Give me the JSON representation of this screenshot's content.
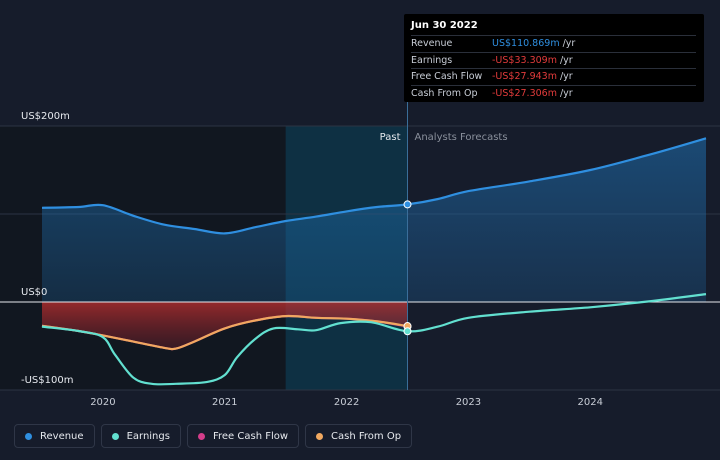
{
  "chart_data": {
    "type": "line",
    "y_tick_labels": [
      "US$200m",
      "US$0",
      "-US$100m"
    ],
    "x_tick_labels": [
      "2020",
      "2021",
      "2022",
      "2023",
      "2024"
    ],
    "region_labels": {
      "past": "Past",
      "forecast": "Analysts Forecasts"
    },
    "series": [
      {
        "name": "Revenue",
        "color": "#2f8fe0",
        "points": [
          [
            2019.5,
            107
          ],
          [
            2019.8,
            108
          ],
          [
            2020.0,
            110
          ],
          [
            2020.25,
            98
          ],
          [
            2020.5,
            88
          ],
          [
            2020.75,
            83
          ],
          [
            2021.0,
            78
          ],
          [
            2021.25,
            85
          ],
          [
            2021.5,
            92
          ],
          [
            2021.75,
            97
          ],
          [
            2022.0,
            103
          ],
          [
            2022.25,
            108
          ],
          [
            2022.5,
            110.869
          ],
          [
            2022.75,
            117
          ],
          [
            2023.0,
            126
          ],
          [
            2023.5,
            137
          ],
          [
            2024.0,
            150
          ],
          [
            2024.5,
            168
          ],
          [
            2024.95,
            186
          ]
        ]
      },
      {
        "name": "Earnings",
        "color": "#62e0d0",
        "points": [
          [
            2019.5,
            -28
          ],
          [
            2019.8,
            -33
          ],
          [
            2020.0,
            -40
          ],
          [
            2020.1,
            -60
          ],
          [
            2020.25,
            -86
          ],
          [
            2020.4,
            -93
          ],
          [
            2020.6,
            -93
          ],
          [
            2020.85,
            -91
          ],
          [
            2021.0,
            -83
          ],
          [
            2021.1,
            -63
          ],
          [
            2021.25,
            -42
          ],
          [
            2021.4,
            -30
          ],
          [
            2021.6,
            -31
          ],
          [
            2021.75,
            -32
          ],
          [
            2021.95,
            -24
          ],
          [
            2022.2,
            -23
          ],
          [
            2022.5,
            -33.309
          ],
          [
            2022.75,
            -28
          ],
          [
            2023.0,
            -18
          ],
          [
            2023.5,
            -11
          ],
          [
            2024.0,
            -6
          ],
          [
            2024.5,
            1
          ],
          [
            2024.95,
            9
          ]
        ]
      },
      {
        "name": "Free Cash Flow",
        "color": "#d43d8a",
        "points": [
          [
            2019.5,
            -27
          ],
          [
            2019.8,
            -33
          ],
          [
            2020.0,
            -38
          ],
          [
            2020.25,
            -45
          ],
          [
            2020.5,
            -52
          ],
          [
            2020.6,
            -53
          ],
          [
            2020.75,
            -45
          ],
          [
            2021.0,
            -30
          ],
          [
            2021.25,
            -21
          ],
          [
            2021.5,
            -16
          ],
          [
            2021.75,
            -18
          ],
          [
            2022.0,
            -19
          ],
          [
            2022.25,
            -22
          ],
          [
            2022.5,
            -27.943
          ]
        ]
      },
      {
        "name": "Cash From Op",
        "color": "#f0a860",
        "points": [
          [
            2019.5,
            -27
          ],
          [
            2019.8,
            -33
          ],
          [
            2020.0,
            -38
          ],
          [
            2020.25,
            -45
          ],
          [
            2020.5,
            -52
          ],
          [
            2020.6,
            -53
          ],
          [
            2020.75,
            -45
          ],
          [
            2021.0,
            -30
          ],
          [
            2021.25,
            -21
          ],
          [
            2021.5,
            -16
          ],
          [
            2021.75,
            -18
          ],
          [
            2022.0,
            -19
          ],
          [
            2022.25,
            -22
          ],
          [
            2022.5,
            -27.306
          ]
        ]
      }
    ],
    "xlim": [
      2019.5,
      2024.95
    ],
    "ylim": [
      -100,
      200
    ],
    "past_end": 2022.5
  },
  "tooltip": {
    "date": "Jun 30 2022",
    "rows": [
      {
        "name": "Revenue",
        "value": "US$110.869m",
        "unit": "/yr",
        "color": "#2f8fe0"
      },
      {
        "name": "Earnings",
        "value": "-US$33.309m",
        "unit": "/yr",
        "color": "#e23b3b"
      },
      {
        "name": "Free Cash Flow",
        "value": "-US$27.943m",
        "unit": "/yr",
        "color": "#e23b3b"
      },
      {
        "name": "Cash From Op",
        "value": "-US$27.306m",
        "unit": "/yr",
        "color": "#e23b3b"
      }
    ]
  },
  "legend": [
    {
      "label": "Revenue",
      "color": "#2f8fe0"
    },
    {
      "label": "Earnings",
      "color": "#62e0d0"
    },
    {
      "label": "Free Cash Flow",
      "color": "#d43d8a"
    },
    {
      "label": "Cash From Op",
      "color": "#f0a860"
    }
  ]
}
